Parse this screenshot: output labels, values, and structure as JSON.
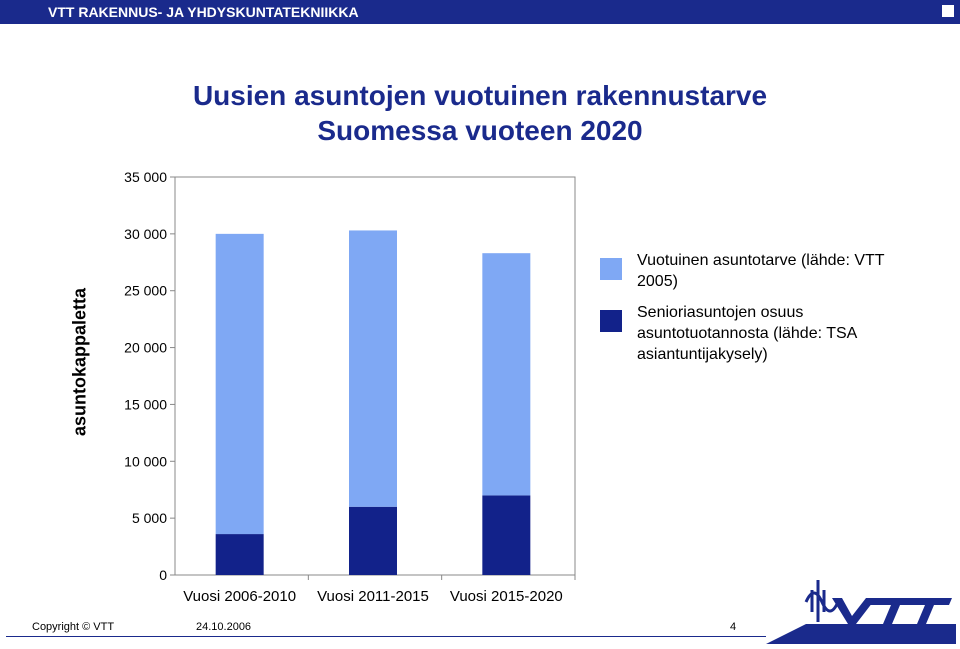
{
  "header": {
    "org": "VTT RAKENNUS- JA YHDYSKUNTATEKNIIKKA"
  },
  "title_line1": "Uusien asuntojen vuotuinen rakennustarve",
  "title_line2": "Suomessa vuoteen 2020",
  "colors": {
    "header": "#1a2a8c",
    "total": "#7fa8f4",
    "senior": "#12228a"
  },
  "chart_data": {
    "type": "bar",
    "stacked": true,
    "categories": [
      "Vuosi 2006-2010",
      "Vuosi 2011-2015",
      "Vuosi 2015-2020"
    ],
    "series": [
      {
        "name": "Senioriasuntojen osuus asuntotuotannosta (lähde: TSA asiantuntijakysely)",
        "values": [
          3600,
          6000,
          7000
        ]
      },
      {
        "name": "Vuotuinen asuntotarve (lähde: VTT 2005)",
        "values": [
          26400,
          24300,
          21300
        ]
      }
    ],
    "totals": [
      30000,
      30300,
      28300
    ],
    "ylabel": "asuntokappaletta",
    "ylim": [
      0,
      35000
    ],
    "yticks": [
      0,
      5000,
      10000,
      15000,
      20000,
      25000,
      30000,
      35000
    ],
    "ytick_labels": [
      "0",
      "5 000",
      "10 000",
      "15 000",
      "20 000",
      "25 000",
      "30 000",
      "35 000"
    ],
    "grid": false,
    "legend_position": "right"
  },
  "legend": {
    "item1": "Vuotuinen asuntotarve (lähde: VTT 2005)",
    "item2": "Senioriasuntojen osuus asuntotuotannosta (lähde: TSA asiantuntijakysely)"
  },
  "footer": {
    "copyright": "Copyright © VTT",
    "date": "24.10.2006",
    "page": "4"
  },
  "logo": {
    "text": "VTT"
  }
}
